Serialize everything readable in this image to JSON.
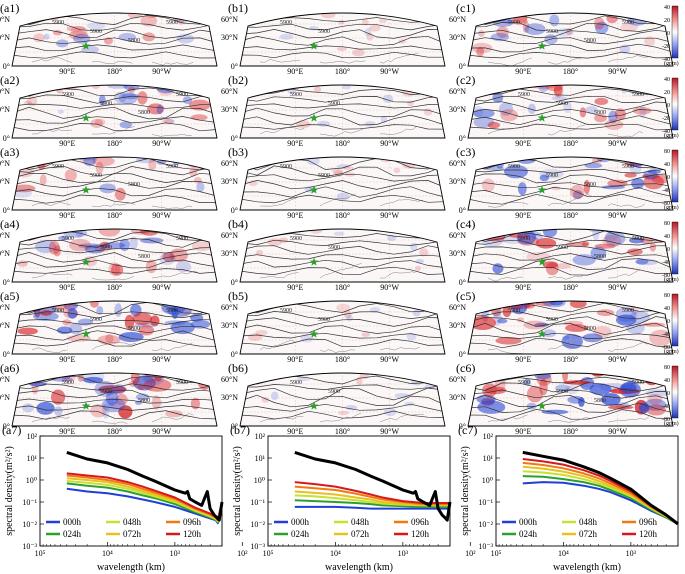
{
  "map_rows": [
    {
      "letters": [
        "(a1)",
        "(b1)",
        "(c1)"
      ],
      "colorbar_ticks": [
        "40",
        "20",
        "0",
        "-20",
        "-40"
      ],
      "cb_max": 40
    },
    {
      "letters": [
        "(a2)",
        "(b2)",
        "(c2)"
      ],
      "colorbar_ticks": [
        "40",
        "20",
        "0",
        "-20",
        "-40"
      ],
      "cb_max": 40
    },
    {
      "letters": [
        "(a3)",
        "(b3)",
        "(c3)"
      ],
      "colorbar_ticks": [
        "80",
        "40",
        "0",
        "-40",
        "-80"
      ],
      "cb_max": 80
    },
    {
      "letters": [
        "(a4)",
        "(b4)",
        "(c4)"
      ],
      "colorbar_ticks": [
        "80",
        "40",
        "0",
        "-40",
        "-80"
      ],
      "cb_max": 80
    },
    {
      "letters": [
        "(a5)",
        "(b5)",
        "(c5)"
      ],
      "colorbar_ticks": [
        "80",
        "40",
        "0",
        "-40",
        "-80"
      ],
      "cb_max": 80
    },
    {
      "letters": [
        "(a6)",
        "(b6)",
        "(c6)"
      ],
      "colorbar_ticks": [
        "80",
        "40",
        "0",
        "-40",
        "-80"
      ],
      "cb_max": 80
    }
  ],
  "map_intensity": [
    [
      0.35,
      0.08,
      0.45
    ],
    [
      0.55,
      0.1,
      0.55
    ],
    [
      0.5,
      0.08,
      0.65
    ],
    [
      0.6,
      0.08,
      0.7
    ],
    [
      0.75,
      0.08,
      0.8
    ],
    [
      0.85,
      0.1,
      0.9
    ]
  ],
  "map_axes": {
    "lat_labels": [
      "60°N",
      "30°N",
      "0°"
    ],
    "lon_labels": [
      "90°E",
      "180°",
      "90°W"
    ],
    "colorbar_unit": "(gpm)"
  },
  "contour_labels": [
    "5900",
    "5900",
    "5800",
    "5900"
  ],
  "colors": {
    "positive": "#d7191c",
    "negative": "#2b4bd6",
    "contour": "#333333",
    "marker": "#2ca02c",
    "spectrum_black": "#000000"
  },
  "chart_data": [
    {
      "panel": "(a7)",
      "type": "line",
      "xscale": "log",
      "yscale": "log",
      "xlabel": "wavelength (km)",
      "ylabel": "spectral density(m²/s²)",
      "xlim": [
        100000,
        200
      ],
      "ylim": [
        0.001,
        100
      ],
      "x_ticks": [
        "10⁵",
        "10⁴",
        "10³",
        "10²"
      ],
      "y_ticks": [
        "10²",
        "10¹",
        "10⁰",
        "10⁻¹",
        "10⁻²",
        "10⁻³"
      ],
      "legend": [
        "000h",
        "048h",
        "096h",
        "024h",
        "072h",
        "120h"
      ],
      "series": [
        {
          "x": [
            40000,
            20000,
            10000,
            5000,
            3000,
            2000,
            1000,
            500,
            300,
            250,
            240,
            230,
            200
          ],
          "y": [
            0.4,
            0.3,
            0.25,
            0.18,
            0.13,
            0.1,
            0.06,
            0.03,
            0.018,
            0.015,
            0.013,
            0.011,
            0.07
          ]
        },
        {
          "x": [
            40000,
            20000,
            10000,
            5000,
            3000,
            2000,
            1000,
            500,
            300,
            250,
            240,
            230,
            200
          ],
          "y": [
            0.7,
            0.55,
            0.45,
            0.3,
            0.2,
            0.15,
            0.08,
            0.035,
            0.02,
            0.016,
            0.014,
            0.012,
            0.08
          ]
        },
        {
          "x": [
            40000,
            20000,
            10000,
            5000,
            3000,
            2000,
            1000,
            500,
            300,
            250,
            240,
            230,
            200
          ],
          "y": [
            0.9,
            0.75,
            0.6,
            0.4,
            0.26,
            0.18,
            0.1,
            0.04,
            0.022,
            0.017,
            0.015,
            0.013,
            0.085
          ]
        },
        {
          "x": [
            40000,
            20000,
            10000,
            5000,
            3000,
            2000,
            1000,
            500,
            300,
            250,
            240,
            230,
            200
          ],
          "y": [
            1.2,
            1.0,
            0.8,
            0.5,
            0.32,
            0.22,
            0.12,
            0.045,
            0.025,
            0.019,
            0.016,
            0.014,
            0.09
          ]
        },
        {
          "x": [
            40000,
            20000,
            10000,
            5000,
            3000,
            2000,
            1000,
            500,
            300,
            250,
            240,
            230,
            200
          ],
          "y": [
            1.6,
            1.3,
            1.0,
            0.65,
            0.4,
            0.27,
            0.14,
            0.05,
            0.027,
            0.02,
            0.017,
            0.015,
            0.095
          ]
        },
        {
          "x": [
            40000,
            20000,
            10000,
            5000,
            3000,
            2000,
            1000,
            500,
            300,
            250,
            240,
            230,
            200
          ],
          "y": [
            2.0,
            1.6,
            1.3,
            0.8,
            0.5,
            0.33,
            0.16,
            0.055,
            0.03,
            0.022,
            0.018,
            0.016,
            0.1
          ]
        },
        {
          "x": [
            40000,
            20000,
            10000,
            5000,
            3000,
            2000,
            1000,
            700,
            650,
            600,
            500,
            400,
            330,
            300,
            260,
            240,
            220,
            200
          ],
          "y": [
            18,
            9,
            6,
            3,
            1.5,
            0.9,
            0.35,
            0.25,
            0.3,
            0.14,
            0.1,
            0.07,
            0.3,
            0.05,
            0.025,
            0.02,
            0.015,
            0.1
          ]
        }
      ]
    },
    {
      "panel": "(b7)",
      "type": "line",
      "xscale": "log",
      "yscale": "log",
      "xlabel": "wavelength (km)",
      "ylabel": "spectral density(m²/s²)",
      "xlim": [
        100000,
        200
      ],
      "ylim": [
        0.001,
        100
      ],
      "x_ticks": [
        "10⁵",
        "10⁴",
        "10³",
        "10²"
      ],
      "y_ticks": [
        "10²",
        "10¹",
        "10⁰",
        "10⁻¹",
        "10⁻²",
        "10⁻³"
      ],
      "legend": [
        "000h",
        "048h",
        "096h",
        "024h",
        "072h",
        "120h"
      ],
      "series": [
        {
          "x": [
            40000,
            20000,
            10000,
            5000,
            3000,
            2000,
            1000,
            500,
            300,
            200
          ],
          "y": [
            0.06,
            0.06,
            0.06,
            0.055,
            0.05,
            0.05,
            0.05,
            0.05,
            0.05,
            0.05
          ]
        },
        {
          "x": [
            40000,
            20000,
            10000,
            5000,
            3000,
            2000,
            1000,
            500,
            300,
            200
          ],
          "y": [
            0.12,
            0.11,
            0.1,
            0.09,
            0.08,
            0.07,
            0.065,
            0.06,
            0.06,
            0.06
          ]
        },
        {
          "x": [
            40000,
            20000,
            10000,
            5000,
            3000,
            2000,
            1000,
            500,
            300,
            200
          ],
          "y": [
            0.2,
            0.18,
            0.15,
            0.12,
            0.1,
            0.085,
            0.075,
            0.07,
            0.07,
            0.07
          ]
        },
        {
          "x": [
            40000,
            20000,
            10000,
            5000,
            3000,
            2000,
            1000,
            500,
            300,
            200
          ],
          "y": [
            0.3,
            0.26,
            0.22,
            0.16,
            0.13,
            0.1,
            0.085,
            0.075,
            0.075,
            0.075
          ]
        },
        {
          "x": [
            40000,
            20000,
            10000,
            5000,
            3000,
            2000,
            1000,
            500,
            300,
            200
          ],
          "y": [
            0.5,
            0.42,
            0.35,
            0.24,
            0.17,
            0.13,
            0.1,
            0.08,
            0.08,
            0.08
          ]
        },
        {
          "x": [
            40000,
            20000,
            10000,
            5000,
            3000,
            2000,
            1000,
            500,
            300,
            200
          ],
          "y": [
            0.8,
            0.65,
            0.5,
            0.32,
            0.22,
            0.16,
            0.11,
            0.09,
            0.09,
            0.09
          ]
        },
        {
          "x": [
            40000,
            20000,
            10000,
            5000,
            3000,
            2000,
            1000,
            700,
            650,
            600,
            500,
            400,
            330,
            300,
            260,
            240,
            220,
            200
          ],
          "y": [
            18,
            9,
            6,
            3,
            1.5,
            0.9,
            0.35,
            0.25,
            0.3,
            0.14,
            0.1,
            0.07,
            0.3,
            0.05,
            0.025,
            0.02,
            0.015,
            0.1
          ]
        }
      ]
    },
    {
      "panel": "(c7)",
      "type": "line",
      "xscale": "log",
      "yscale": "log",
      "xlabel": "wavelength (km)",
      "ylabel": "spectral density(m²/s²)",
      "xlim": [
        100000,
        200
      ],
      "ylim": [
        0.001,
        100
      ],
      "x_ticks": [
        "10⁵",
        "10⁴",
        "10³",
        "10²"
      ],
      "y_ticks": [
        "10²",
        "10¹",
        "10⁰",
        "10⁻¹",
        "10⁻²",
        "10⁻³"
      ],
      "legend": [
        "000h",
        "048h",
        "096h",
        "024h",
        "072h",
        "120h"
      ],
      "series": [
        {
          "x": [
            40000,
            20000,
            10000,
            5000,
            3000,
            2000,
            1000,
            500,
            300,
            200
          ],
          "y": [
            0.7,
            0.8,
            0.75,
            0.55,
            0.4,
            0.28,
            0.12,
            0.04,
            0.02,
            0.01
          ]
        },
        {
          "x": [
            40000,
            20000,
            10000,
            5000,
            3000,
            2000,
            1000,
            500,
            300,
            200
          ],
          "y": [
            1.5,
            1.4,
            1.1,
            0.8,
            0.55,
            0.35,
            0.15,
            0.045,
            0.02,
            0.01
          ]
        },
        {
          "x": [
            40000,
            20000,
            10000,
            5000,
            3000,
            2000,
            1000,
            500,
            300,
            200
          ],
          "y": [
            2.5,
            2.2,
            1.7,
            1.1,
            0.7,
            0.45,
            0.18,
            0.05,
            0.022,
            0.01
          ]
        },
        {
          "x": [
            40000,
            20000,
            10000,
            5000,
            3000,
            2000,
            1000,
            500,
            300,
            200
          ],
          "y": [
            4.0,
            3.3,
            2.4,
            1.5,
            0.9,
            0.55,
            0.21,
            0.055,
            0.023,
            0.01
          ]
        },
        {
          "x": [
            40000,
            20000,
            10000,
            5000,
            3000,
            2000,
            1000,
            500,
            300,
            200
          ],
          "y": [
            6.0,
            4.8,
            3.4,
            2.0,
            1.2,
            0.7,
            0.25,
            0.06,
            0.024,
            0.01
          ]
        },
        {
          "x": [
            40000,
            20000,
            10000,
            5000,
            3000,
            2000,
            1000,
            500,
            300,
            200
          ],
          "y": [
            9.0,
            7.0,
            5.0,
            2.8,
            1.6,
            0.9,
            0.3,
            0.065,
            0.025,
            0.01
          ]
        },
        {
          "x": [
            40000,
            20000,
            10000,
            5000,
            3000,
            2000,
            1000,
            500,
            300,
            200
          ],
          "y": [
            18,
            12,
            8,
            4,
            2.2,
            1.2,
            0.38,
            0.07,
            0.026,
            0.01
          ]
        }
      ]
    }
  ]
}
